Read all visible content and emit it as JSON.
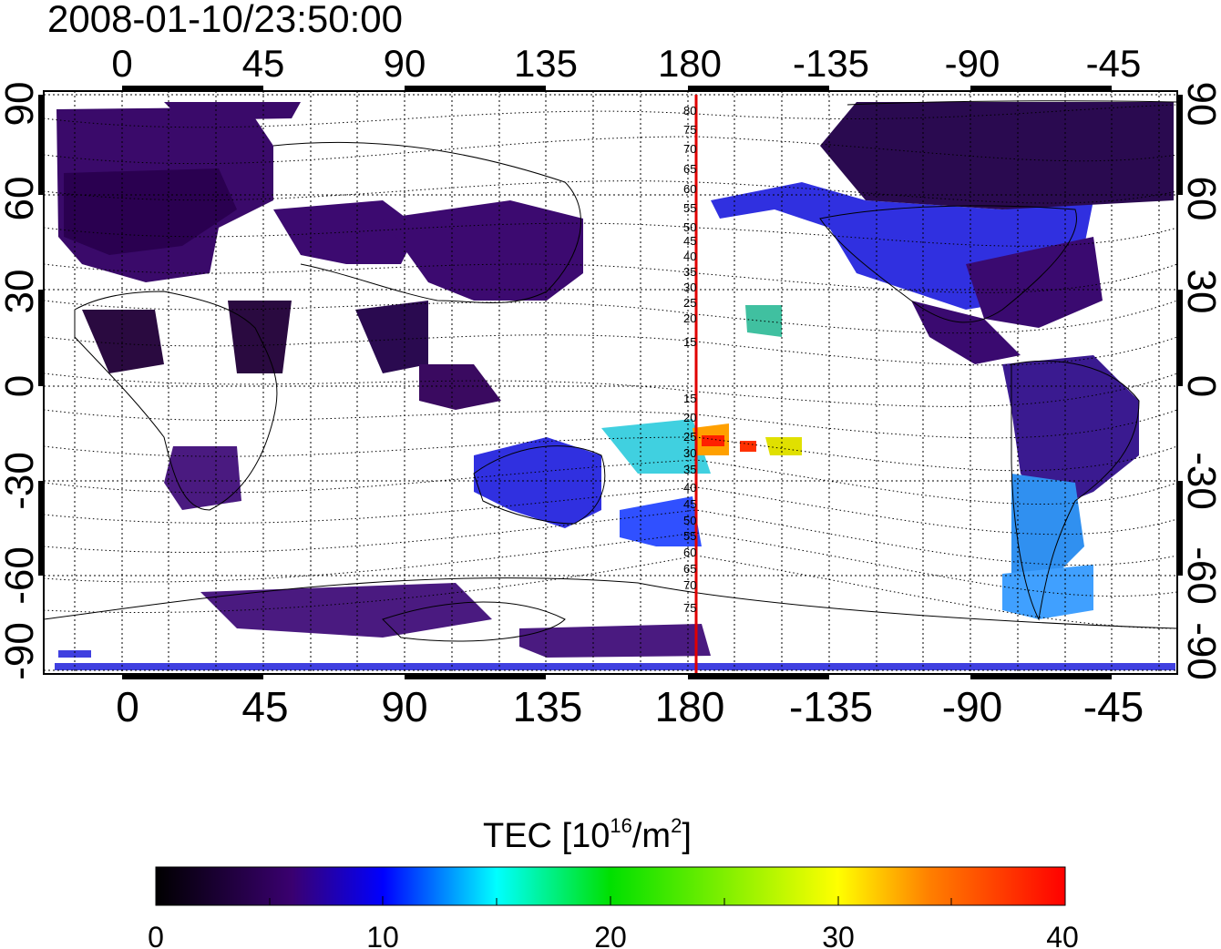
{
  "title": "2008-01-10/23:50:00",
  "map": {
    "lon_ticks": [
      "0",
      "45",
      "90",
      "135",
      "180",
      "-135",
      "-90",
      "-45"
    ],
    "lat_ticks": [
      "90",
      "60",
      "30",
      "0",
      "-30",
      "-60",
      "-90"
    ],
    "meridian_line_color": "#e00000",
    "contour_labels": [
      "80",
      "75",
      "70",
      "65",
      "60",
      "55",
      "50",
      "45",
      "40",
      "35",
      "30",
      "25",
      "20",
      "15",
      "15",
      "20",
      "25",
      "30",
      "35",
      "40",
      "45",
      "50",
      "55",
      "60",
      "65",
      "70",
      "75"
    ]
  },
  "colorbar": {
    "label_text": "TEC  [10",
    "label_sup1": "16",
    "label_mid": "/m",
    "label_sup2": "2",
    "label_end": "]",
    "tick_labels": [
      "0",
      "10",
      "20",
      "30",
      "40"
    ],
    "min": 0,
    "max": 40,
    "colors": [
      "#000000",
      "#40007a",
      "#0000ff",
      "#00ffff",
      "#00ff00",
      "#ffff00",
      "#ff0000"
    ]
  }
}
